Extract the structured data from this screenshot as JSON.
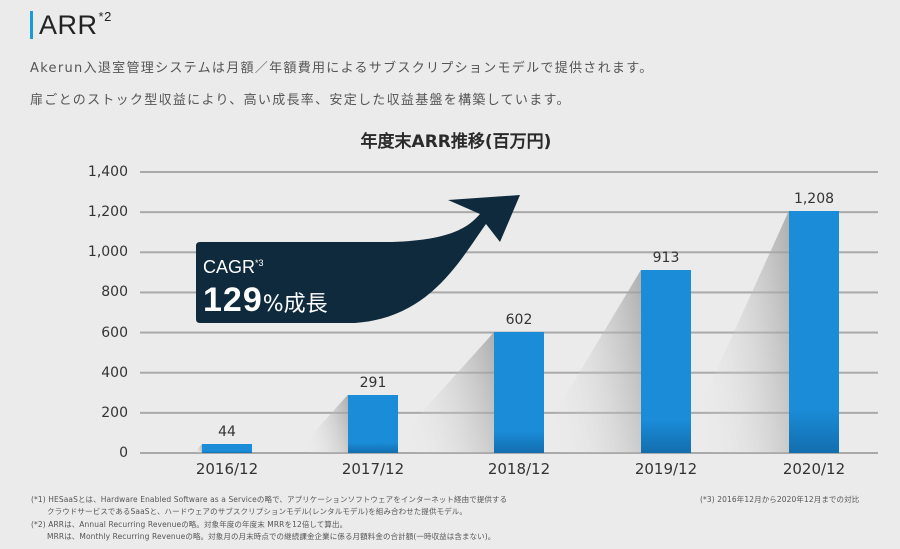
{
  "header": {
    "title": "ARR",
    "title_note": "*2",
    "accent_color": "#1a9ad6",
    "description_lines": [
      "Akerun入退室管理システムは月額／年額費用によるサブスクリプションモデルで提供されます。",
      "扉ごとのストック型収益により、高い成長率、安定した収益基盤を構築しています。"
    ]
  },
  "callout": {
    "label": "CAGR",
    "label_note": "*3",
    "value_number": "129",
    "value_percent": "%",
    "value_word": "成長",
    "color": "#0f2a3c"
  },
  "footnotes": {
    "left": [
      "(*1) HESaaSとは、Hardware Enabled Software as a Serviceの略で、アプリケーションソフトウェアをインターネット経由で提供する",
      "クラウドサービスであるSaaSと、ハードウェアのサブスクリプションモデル(レンタルモデル)を組み合わせた提供モデル。",
      "(*2) ARRは、Annual Recurring Revenueの略。対象年度の年度末 MRRを12倍して算出。",
      "MRRは、Monthly Recurring Revenueの略。対象月の月末時点での継続課金企業に係る月額料金の合計額(一時収益は含まない)。"
    ],
    "right": "(*3) 2016年12月から2020年12月までの対比"
  },
  "chart_data": {
    "type": "bar",
    "title": "年度末ARR推移(百万円)",
    "xlabel": "",
    "ylabel": "百万円",
    "categories": [
      "2016/12",
      "2017/12",
      "2018/12",
      "2019/12",
      "2020/12"
    ],
    "values": [
      44,
      291,
      602,
      913,
      1208
    ],
    "value_labels": [
      "44",
      "291",
      "602",
      "913",
      "1,208"
    ],
    "ylim": [
      0,
      1400
    ],
    "yticks": [
      0,
      200,
      400,
      600,
      800,
      1000,
      1200,
      1400
    ],
    "ytick_labels": [
      "0",
      "200",
      "400",
      "600",
      "800",
      "1,000",
      "1,200",
      "1,400"
    ],
    "grid": true,
    "legend": null,
    "bar_color": "#1a8cd8",
    "annotations": [
      "CAGR*3 129%成長"
    ]
  }
}
